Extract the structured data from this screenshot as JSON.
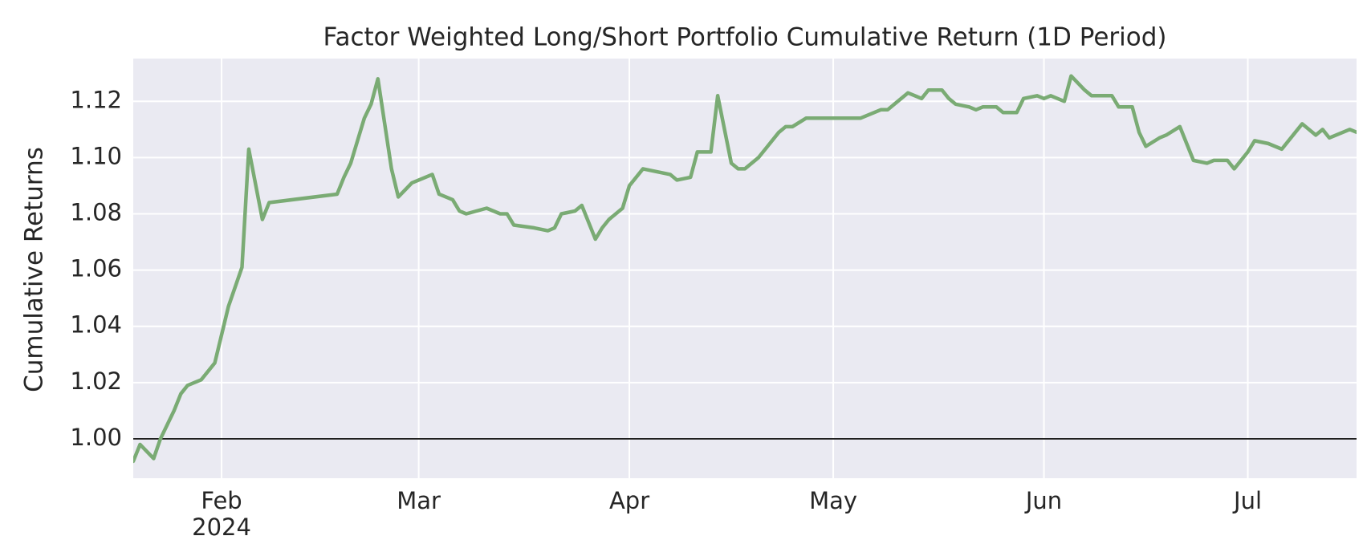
{
  "chart_data": {
    "type": "line",
    "title": "Factor Weighted Long/Short Portfolio Cumulative Return (1D Period)",
    "ylabel": "Cumulative Returns",
    "x": [
      "2024-01-19",
      "2024-01-20",
      "2024-01-22",
      "2024-01-23",
      "2024-01-25",
      "2024-01-26",
      "2024-01-27",
      "2024-01-29",
      "2024-01-31",
      "2024-02-02",
      "2024-02-04",
      "2024-02-05",
      "2024-02-07",
      "2024-02-08",
      "2024-02-18",
      "2024-02-19",
      "2024-02-20",
      "2024-02-22",
      "2024-02-23",
      "2024-02-24",
      "2024-02-26",
      "2024-02-27",
      "2024-02-29",
      "2024-03-01",
      "2024-03-03",
      "2024-03-04",
      "2024-03-06",
      "2024-03-07",
      "2024-03-08",
      "2024-03-11",
      "2024-03-13",
      "2024-03-14",
      "2024-03-15",
      "2024-03-18",
      "2024-03-20",
      "2024-03-21",
      "2024-03-22",
      "2024-03-24",
      "2024-03-25",
      "2024-03-27",
      "2024-03-28",
      "2024-03-29",
      "2024-03-31",
      "2024-04-01",
      "2024-04-03",
      "2024-04-07",
      "2024-04-08",
      "2024-04-10",
      "2024-04-11",
      "2024-04-13",
      "2024-04-14",
      "2024-04-16",
      "2024-04-17",
      "2024-04-18",
      "2024-04-20",
      "2024-04-21",
      "2024-04-23",
      "2024-04-24",
      "2024-04-25",
      "2024-04-27",
      "2024-04-30",
      "2024-05-05",
      "2024-05-08",
      "2024-05-09",
      "2024-05-11",
      "2024-05-12",
      "2024-05-14",
      "2024-05-15",
      "2024-05-17",
      "2024-05-18",
      "2024-05-19",
      "2024-05-21",
      "2024-05-22",
      "2024-05-23",
      "2024-05-25",
      "2024-05-26",
      "2024-05-28",
      "2024-05-29",
      "2024-05-31",
      "2024-06-01",
      "2024-06-02",
      "2024-06-04",
      "2024-06-05",
      "2024-06-07",
      "2024-06-08",
      "2024-06-11",
      "2024-06-12",
      "2024-06-14",
      "2024-06-15",
      "2024-06-16",
      "2024-06-18",
      "2024-06-19",
      "2024-06-21",
      "2024-06-22",
      "2024-06-23",
      "2024-06-25",
      "2024-06-26",
      "2024-06-28",
      "2024-06-29",
      "2024-07-01",
      "2024-07-02",
      "2024-07-04",
      "2024-07-05",
      "2024-07-06",
      "2024-07-08",
      "2024-07-09",
      "2024-07-11",
      "2024-07-12",
      "2024-07-13",
      "2024-07-16",
      "2024-07-17"
    ],
    "series": [
      {
        "color": "#7aab74",
        "values": [
          0.992,
          0.998,
          0.993,
          1.0,
          1.01,
          1.016,
          1.019,
          1.021,
          1.027,
          1.047,
          1.061,
          1.103,
          1.078,
          1.084,
          1.087,
          1.093,
          1.098,
          1.114,
          1.119,
          1.128,
          1.096,
          1.086,
          1.091,
          1.092,
          1.094,
          1.087,
          1.085,
          1.081,
          1.08,
          1.082,
          1.08,
          1.08,
          1.076,
          1.075,
          1.074,
          1.075,
          1.08,
          1.081,
          1.083,
          1.071,
          1.075,
          1.078,
          1.082,
          1.09,
          1.096,
          1.094,
          1.092,
          1.093,
          1.102,
          1.102,
          1.122,
          1.098,
          1.096,
          1.096,
          1.1,
          1.103,
          1.109,
          1.111,
          1.111,
          1.114,
          1.114,
          1.114,
          1.117,
          1.117,
          1.121,
          1.123,
          1.121,
          1.124,
          1.124,
          1.121,
          1.119,
          1.118,
          1.117,
          1.118,
          1.118,
          1.116,
          1.116,
          1.121,
          1.122,
          1.121,
          1.122,
          1.12,
          1.129,
          1.124,
          1.122,
          1.122,
          1.118,
          1.118,
          1.109,
          1.104,
          1.107,
          1.108,
          1.111,
          1.105,
          1.099,
          1.098,
          1.099,
          1.099,
          1.096,
          1.102,
          1.106,
          1.105,
          1.104,
          1.103,
          1.109,
          1.112,
          1.108,
          1.11,
          1.107,
          1.11,
          1.109
        ]
      }
    ],
    "xlim": [
      "2024-01-19",
      "2024-07-17"
    ],
    "xticks": [
      {
        "value": "2024-02-01",
        "label": "Feb\n2024"
      },
      {
        "value": "2024-03-01",
        "label": "Mar"
      },
      {
        "value": "2024-04-01",
        "label": "Apr"
      },
      {
        "value": "2024-05-01",
        "label": "May"
      },
      {
        "value": "2024-06-01",
        "label": "Jun"
      },
      {
        "value": "2024-07-01",
        "label": "Jul"
      }
    ],
    "ylim": [
      0.986,
      1.1352
    ],
    "yticks": [
      {
        "value": 1,
        "label": "1.00"
      },
      {
        "value": 1.02,
        "label": "1.02"
      },
      {
        "value": 1.04,
        "label": "1.04"
      },
      {
        "value": 1.06,
        "label": "1.06"
      },
      {
        "value": 1.08,
        "label": "1.08"
      },
      {
        "value": 1.1,
        "label": "1.10"
      },
      {
        "value": 1.12,
        "label": "1.12"
      }
    ],
    "hline": 1,
    "hline_color": "#000000",
    "grid": true
  }
}
